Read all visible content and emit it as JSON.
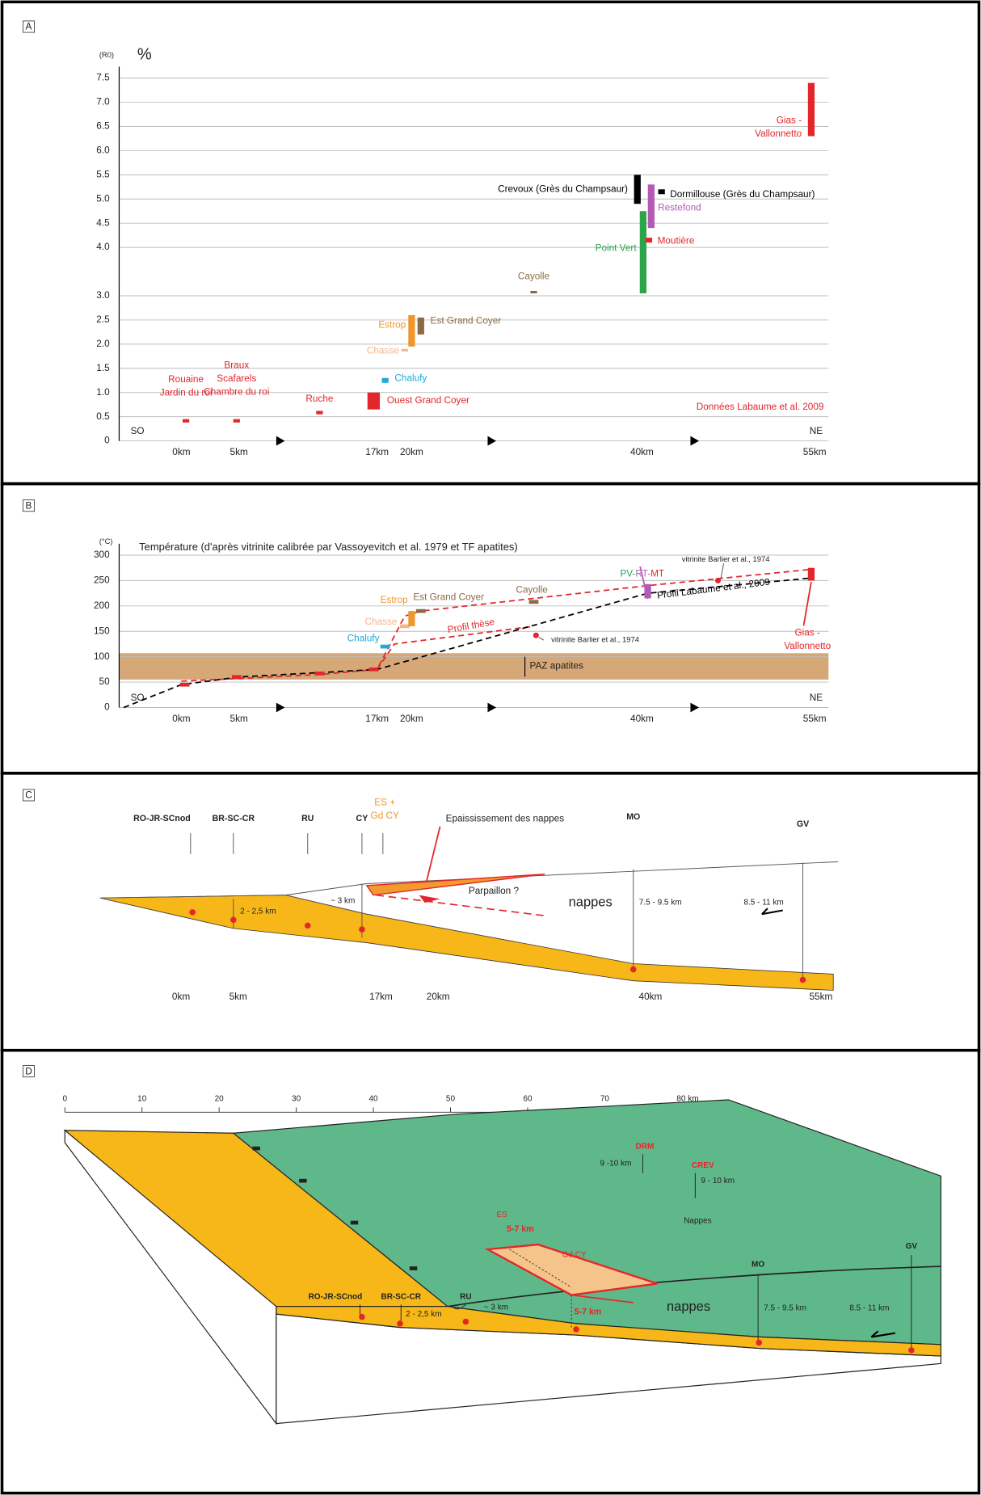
{
  "chart_data": [
    {
      "type": "range_bar",
      "label": "A",
      "y_unit": "(R0)",
      "ylabel": "%",
      "ylim": [
        0,
        7.5
      ],
      "yticks": [
        0,
        0.5,
        {
          "value": 1,
          "label": "1.0"
        },
        1.5,
        {
          "value": 2,
          "label": "2.0"
        },
        2.5,
        {
          "value": 3,
          "label": "3.0"
        },
        {
          "value": 4,
          "label": "4.0"
        },
        4.5,
        {
          "value": 5,
          "label": "5.0"
        },
        5.5,
        {
          "value": 6,
          "label": "6.0"
        },
        6.5,
        {
          "value": 7,
          "label": "7.0"
        },
        7.5
      ],
      "grid": true,
      "xlim": [
        -5.4,
        56.2
      ],
      "xticks": [
        {
          "value": 0,
          "label": "0km"
        },
        {
          "value": 5,
          "label": "5km"
        },
        {
          "value": 17,
          "label": "17km"
        },
        {
          "value": 20,
          "label": "20km"
        },
        {
          "value": 40,
          "label": "40km"
        },
        {
          "value": 55,
          "label": "55km"
        }
      ],
      "left_end": "SO",
      "right_end": "NE",
      "source": "Données Labaume et al. 2009",
      "samples": [
        {
          "name": [
            "Rouaine",
            "Jardin du roi"
          ],
          "x": 0.4,
          "low": 0.38,
          "high": 0.45,
          "color": "#e3262b"
        },
        {
          "name": [
            "Braux",
            "Scafarels",
            "Chambre du roi"
          ],
          "x": 4.8,
          "low": 0.38,
          "high": 0.45,
          "color": "#e3262b"
        },
        {
          "name": [
            "Ruche"
          ],
          "x": 12,
          "low": 0.55,
          "high": 0.62,
          "color": "#e3262b"
        },
        {
          "name": [
            "Ouest Grand Coyer"
          ],
          "x": 16.7,
          "low": 0.65,
          "high": 1.0,
          "color": "#e3262b"
        },
        {
          "name": [
            "Chalufy"
          ],
          "x": 17.7,
          "low": 1.2,
          "high": 1.3,
          "color": "#1fa9d6"
        },
        {
          "name": [
            "Chasse"
          ],
          "x": 19.4,
          "low": 1.85,
          "high": 1.9,
          "color": "#f6b48a"
        },
        {
          "name": [
            "Estrop"
          ],
          "x": 20,
          "low": 1.95,
          "high": 2.6,
          "color": "#f0962e"
        },
        {
          "name": [
            "Est Grand Coyer"
          ],
          "x": 20.8,
          "low": 2.2,
          "high": 2.55,
          "color": "#8c6a45"
        },
        {
          "name": [
            "Cayolle"
          ],
          "x": 30.6,
          "low": 3.05,
          "high": 3.1,
          "color": "#8c6a45"
        },
        {
          "name": [
            "Crevoux (Grès du Champsaur)"
          ],
          "x": 39.6,
          "low": 4.9,
          "high": 5.5,
          "color": "#000000"
        },
        {
          "name": [
            "Point Vert"
          ],
          "x": 40.1,
          "low": 3.05,
          "high": 4.75,
          "color": "#2ba44a"
        },
        {
          "name": [
            "Moutière"
          ],
          "x": 40.6,
          "low": 4.1,
          "high": 4.2,
          "color": "#e3262b"
        },
        {
          "name": [
            "Restefond"
          ],
          "x": 40.8,
          "low": 4.4,
          "high": 5.3,
          "color": "#b45ab4"
        },
        {
          "name": [
            "Dormillouse (Grès du Champsaur)"
          ],
          "x": 41.7,
          "low": 5.1,
          "high": 5.2,
          "color": "#000000"
        },
        {
          "name": [
            "Gias -",
            "Vallonnetto"
          ],
          "x": 54.7,
          "low": 6.3,
          "high": 7.4,
          "color": "#e3262b"
        }
      ]
    },
    {
      "type": "range_bar",
      "label": "B",
      "y_unit": "(°C)",
      "title": "Température (d'après vitrinite calibrée par Vassoyevitch et al. 1979 et TF apatites)",
      "ylim": [
        0,
        300
      ],
      "yticks": [
        0,
        50,
        100,
        150,
        200,
        250,
        300
      ],
      "grid": true,
      "xlim": [
        -5.4,
        56.2
      ],
      "xticks": [
        {
          "value": 0,
          "label": "0km"
        },
        {
          "value": 5,
          "label": "5km"
        },
        {
          "value": 17,
          "label": "17km"
        },
        {
          "value": 20,
          "label": "20km"
        },
        {
          "value": 40,
          "label": "40km"
        },
        {
          "value": 55,
          "label": "55km"
        }
      ],
      "left_end": "SO",
      "right_end": "NE",
      "band": {
        "label": "PAZ apatites",
        "low": 55,
        "high": 107,
        "color": "#d6a878"
      },
      "samples": [
        {
          "x": 0.3,
          "value": 45,
          "color": "#e3262b"
        },
        {
          "x": 4.8,
          "value": 60,
          "color": "#e3262b"
        },
        {
          "x": 12,
          "value": 67,
          "color": "#e3262b"
        },
        {
          "x": 16.7,
          "value": 75,
          "color": "#e3262b"
        },
        {
          "name": [
            "Chalufy"
          ],
          "x": 17.7,
          "value": 120,
          "color": "#1fa9d6"
        },
        {
          "name": [
            "Chasse"
          ],
          "x": 19.4,
          "value": 160,
          "color": "#f6b48a"
        },
        {
          "name": [
            "Estrop"
          ],
          "x": 20,
          "low": 160,
          "high": 190,
          "color": "#f0962e"
        },
        {
          "name": [
            "Est Grand Coyer"
          ],
          "x": 20.8,
          "value": 190,
          "color": "#8c6a45"
        },
        {
          "name": [
            "Cayolle"
          ],
          "x": 30.6,
          "value": 208,
          "color": "#8c6a45"
        },
        {
          "name": [
            "PV-",
            "RT-",
            "MT"
          ],
          "name_colors": [
            "#2ba44a",
            "#b45ab4",
            "#e3262b"
          ],
          "x": 40.5,
          "low": 215,
          "high": 243,
          "color": "#b45ab4"
        },
        {
          "name": [
            "Gias -",
            "Vallonnetto"
          ],
          "x": 54.7,
          "low": 250,
          "high": 275,
          "color": "#e3262b"
        }
      ],
      "points": [
        {
          "x": 30.8,
          "value": 142,
          "label": "vitrinite Barlier et al., 1974",
          "color": "#e3262b"
        },
        {
          "x": 46.6,
          "value": 250,
          "label": "vitrinite Barlier et al., 1974",
          "color": "#e3262b"
        }
      ],
      "series": [
        {
          "name": "Profil thèse",
          "color": "#e3262b",
          "x": [
            0,
            5,
            12,
            17,
            19.4,
            20.8,
            40.5,
            54.7
          ],
          "values": [
            52,
            57,
            65,
            75,
            180,
            190,
            240,
            272
          ]
        },
        {
          "color": "#e3262b",
          "x": [
            17,
            18.5,
            30.6
          ],
          "values": [
            75,
            125,
            160
          ]
        },
        {
          "name": "Profil Labaume et al., 2009",
          "color": "#000000",
          "x": [
            -5,
            0,
            5,
            17,
            40.5,
            54.7
          ],
          "values": [
            0,
            45,
            60,
            75,
            225,
            255
          ]
        }
      ]
    }
  ],
  "diagrams": {
    "C": {
      "label": "C",
      "sites": [
        "RO-JR-SCnod",
        "BR-SC-CR",
        "RU",
        "CY"
      ],
      "es_gdcy": [
        "ES +",
        "Gd CY"
      ],
      "thickening": "Epaississement des nappes",
      "mo": "MO",
      "gv": "GV",
      "parpaillon": "Parpaillon ?",
      "nappes": "nappes",
      "thick_cy": "~ 3 km",
      "thick_br": "2 - 2,5 km",
      "thick_mo": "7.5 - 9.5 km",
      "thick_gv": "8.5 - 11 km",
      "distances": [
        "0km",
        "5km",
        "17km",
        "20km",
        "40km",
        "55km"
      ]
    },
    "D": {
      "label": "D",
      "scale": [
        "0",
        "10",
        "20",
        "30",
        "40",
        "50",
        "60",
        "70",
        "80 km"
      ],
      "drm": "DRM",
      "drm_thick": "9 -10 km",
      "crev": "CREV",
      "crev_thick": "9 - 10 km",
      "nappes_top": "Nappes",
      "es": "ES",
      "es_depth": "5-7 km",
      "gdcy": "Gd CY",
      "gdcy_depth": "5-7 km",
      "mo": "MO",
      "gv": "GV",
      "ro": "RO-JR-SCnod",
      "br": "BR-SC-CR",
      "ru": "RU",
      "thick_ru": "~ 3 km",
      "thick_br": "2 - 2,5 km",
      "nappes": "nappes",
      "thick_mo": "7.5 - 9.5 km",
      "thick_gv": "8.5 - 11 km"
    }
  }
}
